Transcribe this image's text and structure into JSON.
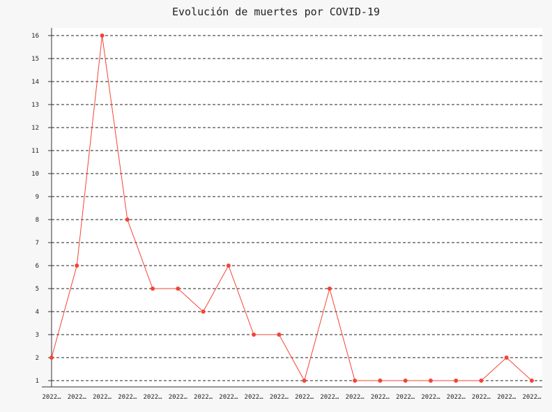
{
  "chart_data": {
    "type": "line",
    "title": "Evolución de muertes por COVID-19",
    "xlabel": "",
    "ylabel": "",
    "categories": [
      "2022…",
      "2022…",
      "2022…",
      "2022…",
      "2022…",
      "2022…",
      "2022…",
      "2022…",
      "2022…",
      "2022…",
      "2022…",
      "2022…",
      "2022…",
      "2022…",
      "2022…",
      "2022…",
      "2022…",
      "2022…",
      "2022…",
      "2022…"
    ],
    "series": [
      {
        "values": [
          2,
          6,
          16,
          8,
          5,
          5,
          4,
          6,
          3,
          3,
          1,
          5,
          1,
          1,
          1,
          1,
          1,
          1,
          2,
          1
        ],
        "color": "#f44336"
      }
    ],
    "yticks": [
      "1",
      "2",
      "3",
      "4",
      "5",
      "6",
      "7",
      "8",
      "9",
      "10",
      "11",
      "12",
      "13",
      "14",
      "15",
      "16"
    ],
    "ylim": [
      1,
      16
    ],
    "grid": true,
    "legend": "none"
  }
}
